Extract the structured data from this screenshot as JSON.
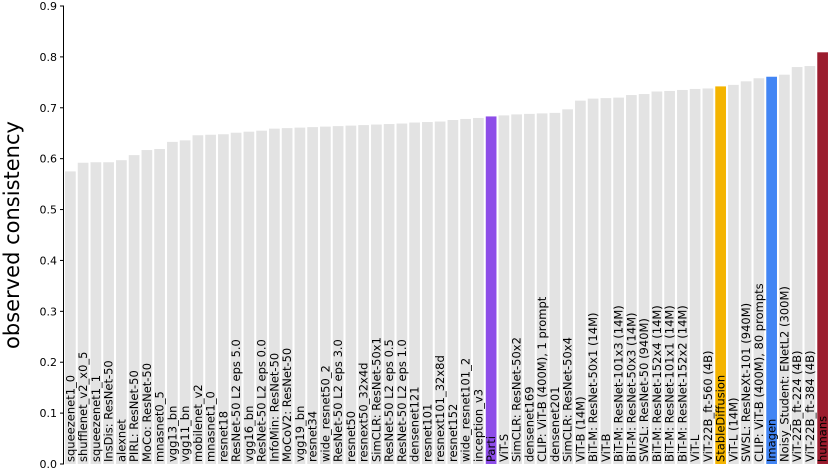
{
  "chart_data": {
    "type": "bar",
    "ylabel": "observed consistency",
    "xlabel": "",
    "title": "",
    "ylim": [
      0,
      0.9
    ],
    "yticks": [
      0.0,
      0.1,
      0.2,
      0.3,
      0.4,
      0.5,
      0.6,
      0.7,
      0.8,
      0.9
    ],
    "ytick_labels": [
      "0.0",
      "0.1",
      "0.2",
      "0.3",
      "0.4",
      "0.5",
      "0.6",
      "0.7",
      "0.8",
      "0.9"
    ],
    "grid": false,
    "default_color": "#e3e3e3",
    "highlight_colors": {
      "Parti": "#8d4de8",
      "StableDiffusion": "#f4b400",
      "Imagen": "#4285f4",
      "humans": "#9b1c2e"
    },
    "categories": [
      "squeezenet1_0",
      "shufflenet_v2_x0_5",
      "squeezenet1_1",
      "InsDis: ResNet-50",
      "alexnet",
      "PIRL: ResNet-50",
      "MoCo: ResNet-50",
      "mnasnet0_5",
      "vgg13_bn",
      "vgg11_bn",
      "mobilenet_v2",
      "mnasnet1_0",
      "resnet18",
      "ResNet-50 L2 eps 5.0",
      "vgg16_bn",
      "ResNet-50 L2 eps 0.0",
      "InfoMin: ResNet-50",
      "MoCoV2: ResNet-50",
      "vgg19_bn",
      "resnet34",
      "wide_resnet50_2",
      "ResNet-50 L2 eps 3.0",
      "resnet50",
      "resnext50_32x4d",
      "SimCLR: ResNet-50x1",
      "ResNet-50 L2 eps 0.5",
      "ResNet-50 L2 eps 1.0",
      "densenet121",
      "resnet101",
      "resnext101_32x8d",
      "resnet152",
      "wide_resnet101_2",
      "inception_v3",
      "Parti",
      "ViT-S",
      "SimCLR: ResNet-50x2",
      "densenet169",
      "CLIP: ViT-B (400M), 1 prompt",
      "densenet201",
      "SimCLR: ResNet-50x4",
      "ViT-B (14M)",
      "BiT-M: ResNet-50x1 (14M)",
      "ViT-B",
      "BiT-M: ResNet-101x3 (14M)",
      "BiT-M: ResNet-50x3 (14M)",
      "SWSL: ResNet-50 (940M)",
      "BiT-M: ResNet-152x4 (14M)",
      "BiT-M: ResNet-101x1 (14M)",
      "BiT-M: ResNet-152x2 (14M)",
      "ViT-L",
      "ViT-22B_ft-560 (4B)",
      "StableDiffusion",
      "ViT-L (14M)",
      "SWSL: ResNeXt-101 (940M)",
      "CLIP: ViT-B (400M), 80 prompts",
      "Imagen",
      "Noisy_Student: ENetL2 (300M)",
      "ViT-22B_ft-224 (4B)",
      "ViT-22B_ft-384 (4B)",
      "humans"
    ],
    "values": [
      0.575,
      0.592,
      0.593,
      0.593,
      0.597,
      0.607,
      0.617,
      0.619,
      0.633,
      0.636,
      0.646,
      0.647,
      0.648,
      0.651,
      0.653,
      0.655,
      0.659,
      0.66,
      0.661,
      0.662,
      0.663,
      0.664,
      0.665,
      0.666,
      0.667,
      0.668,
      0.669,
      0.671,
      0.672,
      0.673,
      0.676,
      0.678,
      0.68,
      0.683,
      0.685,
      0.687,
      0.688,
      0.689,
      0.69,
      0.697,
      0.714,
      0.718,
      0.719,
      0.72,
      0.725,
      0.727,
      0.732,
      0.733,
      0.735,
      0.737,
      0.738,
      0.742,
      0.745,
      0.752,
      0.758,
      0.761,
      0.765,
      0.78,
      0.782,
      0.809
    ]
  }
}
